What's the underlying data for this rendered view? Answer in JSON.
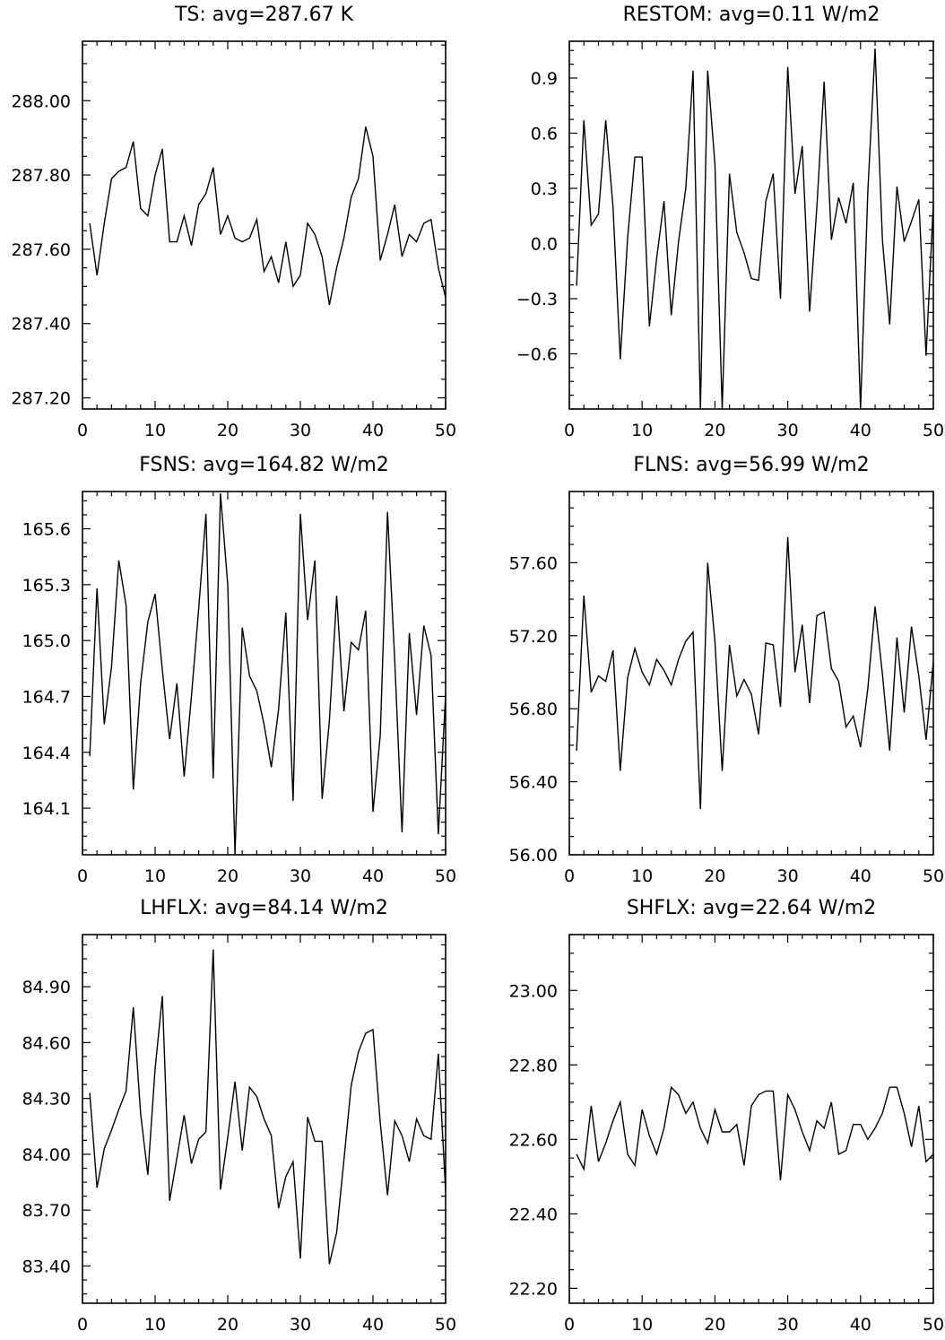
{
  "chart_data": [
    {
      "type": "line",
      "title": "TS: avg=287.67 K",
      "xlabel": "",
      "ylabel": "",
      "xlim": [
        0,
        50
      ],
      "ylim": [
        287.17,
        288.16
      ],
      "xticks": [
        0,
        10,
        20,
        30,
        40,
        50
      ],
      "xtick_labels": [
        "0",
        "10",
        "20",
        "30",
        "40",
        "50"
      ],
      "yticks": [
        287.2,
        287.4,
        287.6,
        287.8,
        288.0
      ],
      "ytick_labels": [
        "287.20",
        "287.40",
        "287.60",
        "287.80",
        "288.00"
      ],
      "x": [
        1,
        2,
        3,
        4,
        5,
        6,
        7,
        8,
        9,
        10,
        11,
        12,
        13,
        14,
        15,
        16,
        17,
        18,
        19,
        20,
        21,
        22,
        23,
        24,
        25,
        26,
        27,
        28,
        29,
        30,
        31,
        32,
        33,
        34,
        35,
        36,
        37,
        38,
        39,
        40,
        41,
        42,
        43,
        44,
        45,
        46,
        47,
        48,
        49,
        50
      ],
      "y": [
        287.67,
        287.53,
        287.67,
        287.79,
        287.81,
        287.82,
        287.89,
        287.71,
        287.69,
        287.8,
        287.87,
        287.62,
        287.62,
        287.69,
        287.61,
        287.72,
        287.75,
        287.82,
        287.64,
        287.69,
        287.63,
        287.62,
        287.63,
        287.68,
        287.54,
        287.58,
        287.51,
        287.62,
        287.5,
        287.53,
        287.67,
        287.64,
        287.58,
        287.45,
        287.55,
        287.63,
        287.74,
        287.79,
        287.93,
        287.85,
        287.57,
        287.64,
        287.72,
        287.58,
        287.64,
        287.62,
        287.67,
        287.68,
        287.55,
        287.47
      ]
    },
    {
      "type": "line",
      "title": "RESTOM: avg=0.11 W/m2",
      "xlabel": "",
      "ylabel": "",
      "xlim": [
        0,
        50
      ],
      "ylim": [
        -0.9,
        1.1
      ],
      "xticks": [
        0,
        10,
        20,
        30,
        40,
        50
      ],
      "xtick_labels": [
        "0",
        "10",
        "20",
        "30",
        "40",
        "50"
      ],
      "yticks": [
        -0.6,
        -0.3,
        0.0,
        0.3,
        0.6,
        0.9
      ],
      "ytick_labels": [
        "−0.6",
        "−0.3",
        "0.0",
        "0.3",
        "0.6",
        "0.9"
      ],
      "x": [
        1,
        2,
        3,
        4,
        5,
        6,
        7,
        8,
        9,
        10,
        11,
        12,
        13,
        14,
        15,
        16,
        17,
        18,
        19,
        20,
        21,
        22,
        23,
        24,
        25,
        26,
        27,
        28,
        29,
        30,
        31,
        32,
        33,
        34,
        35,
        36,
        37,
        38,
        39,
        40,
        41,
        42,
        43,
        44,
        45,
        46,
        47,
        48,
        49,
        50
      ],
      "y": [
        -0.23,
        0.67,
        0.1,
        0.16,
        0.67,
        0.2,
        -0.63,
        0.03,
        0.47,
        0.47,
        -0.45,
        -0.08,
        0.23,
        -0.39,
        0.01,
        0.3,
        0.94,
        -0.9,
        0.94,
        0.43,
        -0.9,
        0.38,
        0.06,
        -0.05,
        -0.19,
        -0.2,
        0.23,
        0.38,
        -0.3,
        0.96,
        0.27,
        0.53,
        -0.37,
        0.2,
        0.88,
        0.02,
        0.25,
        0.11,
        0.33,
        -0.9,
        0.28,
        1.06,
        0.02,
        -0.44,
        0.31,
        0.01,
        0.12,
        0.24,
        -0.61,
        0.22
      ]
    },
    {
      "type": "line",
      "title": "FSNS: avg=164.82 W/m2",
      "xlabel": "",
      "ylabel": "",
      "xlim": [
        0,
        50
      ],
      "ylim": [
        163.85,
        165.8
      ],
      "xticks": [
        0,
        10,
        20,
        30,
        40,
        50
      ],
      "xtick_labels": [
        "0",
        "10",
        "20",
        "30",
        "40",
        "50"
      ],
      "yticks": [
        164.1,
        164.4,
        164.7,
        165.0,
        165.3,
        165.6
      ],
      "ytick_labels": [
        "164.1",
        "164.4",
        "164.7",
        "165.0",
        "165.3",
        "165.6"
      ],
      "x": [
        1,
        2,
        3,
        4,
        5,
        6,
        7,
        8,
        9,
        10,
        11,
        12,
        13,
        14,
        15,
        16,
        17,
        18,
        19,
        20,
        21,
        22,
        23,
        24,
        25,
        26,
        27,
        28,
        29,
        30,
        31,
        32,
        33,
        34,
        35,
        36,
        37,
        38,
        39,
        40,
        41,
        42,
        43,
        44,
        45,
        46,
        47,
        48,
        49,
        50
      ],
      "y": [
        164.38,
        165.28,
        164.55,
        164.86,
        165.43,
        165.19,
        164.2,
        164.77,
        165.1,
        165.25,
        164.84,
        164.47,
        164.77,
        164.27,
        164.7,
        165.17,
        165.68,
        164.26,
        165.79,
        165.3,
        163.85,
        165.07,
        164.81,
        164.73,
        164.55,
        164.32,
        164.63,
        165.15,
        164.14,
        165.68,
        165.11,
        165.43,
        164.15,
        164.57,
        165.24,
        164.62,
        164.99,
        164.95,
        165.16,
        164.08,
        164.49,
        165.69,
        164.89,
        163.97,
        165.04,
        164.6,
        165.08,
        164.92,
        163.96,
        164.71
      ]
    },
    {
      "type": "line",
      "title": "FLNS: avg=56.99 W/m2",
      "xlabel": "",
      "ylabel": "",
      "xlim": [
        0,
        50
      ],
      "ylim": [
        56.0,
        57.99
      ],
      "xticks": [
        0,
        10,
        20,
        30,
        40,
        50
      ],
      "xtick_labels": [
        "0",
        "10",
        "20",
        "30",
        "40",
        "50"
      ],
      "yticks": [
        56.0,
        56.4,
        56.8,
        57.2,
        57.6
      ],
      "ytick_labels": [
        "56.00",
        "56.40",
        "56.80",
        "57.20",
        "57.60"
      ],
      "x": [
        1,
        2,
        3,
        4,
        5,
        6,
        7,
        8,
        9,
        10,
        11,
        12,
        13,
        14,
        15,
        16,
        17,
        18,
        19,
        20,
        21,
        22,
        23,
        24,
        25,
        26,
        27,
        28,
        29,
        30,
        31,
        32,
        33,
        34,
        35,
        36,
        37,
        38,
        39,
        40,
        41,
        42,
        43,
        44,
        45,
        46,
        47,
        48,
        49,
        50
      ],
      "y": [
        56.57,
        57.42,
        56.89,
        56.98,
        56.95,
        57.12,
        56.46,
        56.97,
        57.13,
        57.0,
        56.93,
        57.07,
        57.01,
        56.93,
        57.07,
        57.17,
        57.22,
        56.25,
        57.6,
        57.17,
        56.46,
        57.15,
        56.87,
        56.96,
        56.88,
        56.66,
        57.16,
        57.15,
        56.81,
        57.74,
        57.0,
        57.26,
        56.83,
        57.31,
        57.33,
        57.02,
        56.95,
        56.7,
        56.76,
        56.59,
        56.91,
        57.36,
        56.99,
        56.57,
        57.19,
        56.78,
        57.25,
        56.98,
        56.63,
        57.06
      ]
    },
    {
      "type": "line",
      "title": "LHFLX: avg=84.14 W/m2",
      "xlabel": "",
      "ylabel": "",
      "xlim": [
        0,
        50
      ],
      "ylim": [
        83.2,
        85.18
      ],
      "xticks": [
        0,
        10,
        20,
        30,
        40,
        50
      ],
      "xtick_labels": [
        "0",
        "10",
        "20",
        "30",
        "40",
        "50"
      ],
      "yticks": [
        83.4,
        83.7,
        84.0,
        84.3,
        84.6,
        84.9
      ],
      "ytick_labels": [
        "83.40",
        "83.70",
        "84.00",
        "84.30",
        "84.60",
        "84.90"
      ],
      "x": [
        1,
        2,
        3,
        4,
        5,
        6,
        7,
        8,
        9,
        10,
        11,
        12,
        13,
        14,
        15,
        16,
        17,
        18,
        19,
        20,
        21,
        22,
        23,
        24,
        25,
        26,
        27,
        28,
        29,
        30,
        31,
        32,
        33,
        34,
        35,
        36,
        37,
        38,
        39,
        40,
        41,
        42,
        43,
        44,
        45,
        46,
        47,
        48,
        49,
        50
      ],
      "y": [
        84.33,
        83.82,
        84.03,
        84.13,
        84.24,
        84.34,
        84.79,
        84.22,
        83.89,
        84.46,
        84.85,
        83.75,
        83.98,
        84.21,
        83.95,
        84.08,
        84.12,
        85.1,
        83.81,
        84.09,
        84.39,
        84.02,
        84.36,
        84.31,
        84.19,
        84.1,
        83.71,
        83.88,
        83.96,
        83.44,
        84.2,
        84.07,
        84.07,
        83.41,
        83.58,
        83.97,
        84.37,
        84.55,
        84.65,
        84.67,
        84.17,
        83.78,
        84.18,
        84.1,
        83.96,
        84.19,
        84.1,
        84.08,
        84.54,
        83.8
      ]
    },
    {
      "type": "line",
      "title": "SHFLX: avg=22.64 W/m2",
      "xlabel": "",
      "ylabel": "",
      "xlim": [
        0,
        50
      ],
      "ylim": [
        22.16,
        23.15
      ],
      "xticks": [
        0,
        10,
        20,
        30,
        40,
        50
      ],
      "xtick_labels": [
        "0",
        "10",
        "20",
        "30",
        "40",
        "50"
      ],
      "yticks": [
        22.2,
        22.4,
        22.6,
        22.8,
        23.0
      ],
      "ytick_labels": [
        "22.20",
        "22.40",
        "22.60",
        "22.80",
        "23.00"
      ],
      "x": [
        1,
        2,
        3,
        4,
        5,
        6,
        7,
        8,
        9,
        10,
        11,
        12,
        13,
        14,
        15,
        16,
        17,
        18,
        19,
        20,
        21,
        22,
        23,
        24,
        25,
        26,
        27,
        28,
        29,
        30,
        31,
        32,
        33,
        34,
        35,
        36,
        37,
        38,
        39,
        40,
        41,
        42,
        43,
        44,
        45,
        46,
        47,
        48,
        49,
        50
      ],
      "y": [
        22.56,
        22.52,
        22.69,
        22.54,
        22.59,
        22.65,
        22.7,
        22.56,
        22.53,
        22.68,
        22.61,
        22.56,
        22.63,
        22.74,
        22.72,
        22.67,
        22.7,
        22.63,
        22.59,
        22.68,
        22.62,
        22.62,
        22.64,
        22.53,
        22.69,
        22.72,
        22.73,
        22.73,
        22.49,
        22.72,
        22.68,
        22.62,
        22.57,
        22.65,
        22.63,
        22.7,
        22.56,
        22.57,
        22.64,
        22.64,
        22.6,
        22.63,
        22.67,
        22.74,
        22.74,
        22.67,
        22.58,
        22.69,
        22.54,
        22.56
      ]
    }
  ]
}
